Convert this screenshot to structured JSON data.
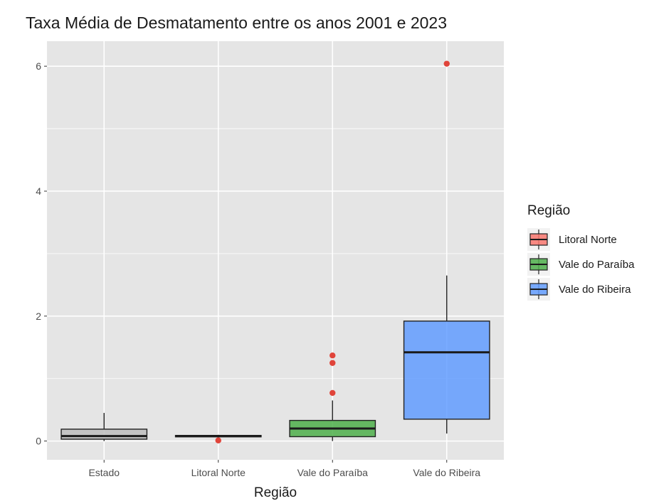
{
  "chart_data": {
    "type": "boxplot",
    "title": "Taxa Média de Desmatamento entre os anos 2001 e 2023",
    "xlabel": "Região",
    "ylabel": "",
    "ylim": [
      -0.3,
      6.4
    ],
    "yticks": [
      0,
      2,
      4,
      6
    ],
    "categories": [
      "Estado",
      "Litoral Norte",
      "Vale do Paraíba",
      "Vale do Ribeira"
    ],
    "grid": true,
    "legend": {
      "title": "Região",
      "position": "right",
      "entries": [
        {
          "label": "Litoral Norte",
          "color": "#F8766D"
        },
        {
          "label": "Vale do Paraíba",
          "color": "#4DAF4A"
        },
        {
          "label": "Vale do Ribeira",
          "color": "#619CFF"
        }
      ]
    },
    "boxes": [
      {
        "category": "Estado",
        "color": "#BEBEBE",
        "min": 0.0,
        "q1": 0.03,
        "median": 0.08,
        "q3": 0.19,
        "max": 0.45,
        "outliers": []
      },
      {
        "category": "Litoral Norte",
        "color": "#F8766D",
        "min": 0.06,
        "q1": 0.07,
        "median": 0.08,
        "q3": 0.09,
        "max": 0.1,
        "outliers": [
          0.01
        ]
      },
      {
        "category": "Vale do Paraíba",
        "color": "#4DAF4A",
        "min": 0.0,
        "q1": 0.07,
        "median": 0.2,
        "q3": 0.33,
        "max": 0.65,
        "outliers": [
          0.77,
          1.25,
          1.37
        ]
      },
      {
        "category": "Vale do Ribeira",
        "color": "#619CFF",
        "min": 0.12,
        "q1": 0.35,
        "median": 1.42,
        "q3": 1.92,
        "max": 2.65,
        "outliers": [
          6.04
        ]
      }
    ],
    "outlier_color": "#E0443A",
    "panel_color": "#E5E5E5",
    "grid_color": "#FFFFFF"
  }
}
